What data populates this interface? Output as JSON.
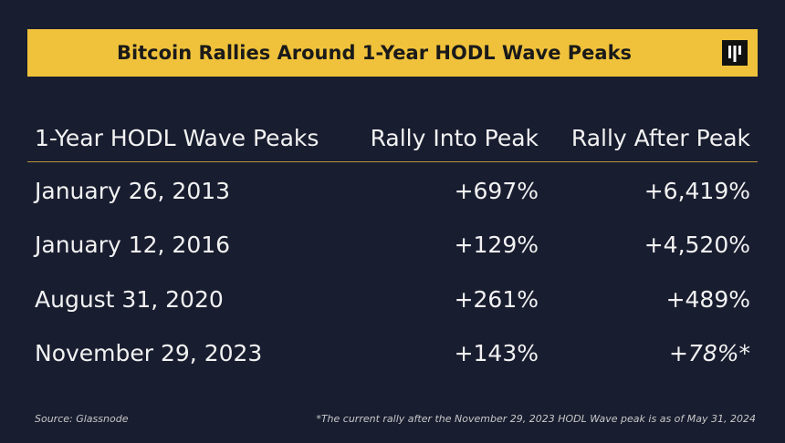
{
  "header": {
    "title": "Bitcoin Rallies Around 1-Year HODL Wave Peaks"
  },
  "table": {
    "columns": [
      "1-Year HODL Wave Peaks",
      "Rally Into Peak",
      "Rally After Peak"
    ],
    "rows": [
      [
        "January 26, 2013",
        "+697%",
        "+6,419%"
      ],
      [
        "January 12, 2016",
        "+129%",
        "+4,520%"
      ],
      [
        "August 31, 2020",
        "+261%",
        "+489%"
      ],
      [
        "November 29, 2023",
        "+143%",
        "+78%*"
      ]
    ]
  },
  "footer": {
    "source": "Source: Glassnode",
    "note": "*The current rally after the November 29, 2023 HODL Wave peak is as of May 31, 2024"
  }
}
